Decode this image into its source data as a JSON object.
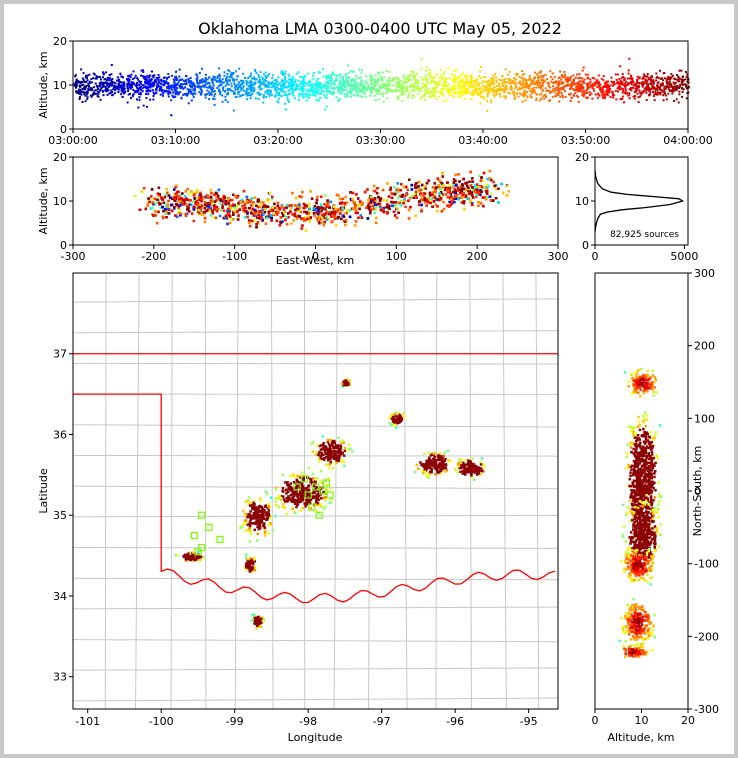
{
  "title": "Oklahoma LMA 0300-0400 UTC May 05, 2022",
  "colors": {
    "state_border": "#ff0000",
    "county": "#c8c8c8",
    "stations": "#7cfc00",
    "axis": "#000000"
  },
  "chart_data": [
    {
      "id": "time-altitude",
      "type": "scatter",
      "xlabel": "",
      "ylabel": "Altitude, km",
      "x_ticks": [
        "03:00:00",
        "03:10:00",
        "03:20:00",
        "03:30:00",
        "03:40:00",
        "03:50:00",
        "04:00:00"
      ],
      "y_ticks": [
        "0",
        "10",
        "20"
      ],
      "xlim": [
        "03:00:00",
        "04:00:00"
      ],
      "ylim": [
        0,
        20
      ],
      "color_by": "time",
      "colormap": "jet"
    },
    {
      "id": "ew-altitude",
      "type": "scatter",
      "xlabel": "East-West, km",
      "ylabel": "Altitude, km",
      "x_ticks": [
        "-300",
        "-200",
        "-100",
        "0",
        "100",
        "200",
        "300"
      ],
      "y_ticks": [
        "0",
        "10",
        "20"
      ],
      "xlim": [
        -300,
        300
      ],
      "ylim": [
        0,
        20
      ],
      "clusters": [
        {
          "x": -175,
          "y": 10
        },
        {
          "x": -120,
          "y": 9
        },
        {
          "x": -60,
          "y": 8
        },
        {
          "x": 10,
          "y": 8
        },
        {
          "x": 80,
          "y": 10
        },
        {
          "x": 140,
          "y": 12
        },
        {
          "x": 190,
          "y": 13
        }
      ]
    },
    {
      "id": "altitude-histogram",
      "type": "line",
      "x_ticks": [
        "0",
        "5000"
      ],
      "y_ticks": [
        "0",
        "10",
        "20"
      ],
      "xlim": [
        0,
        5200
      ],
      "ylim": [
        0,
        20
      ],
      "annotation": "82,925 sources",
      "x": [
        0,
        30,
        80,
        150,
        300,
        700,
        1500,
        2800,
        4200,
        4900,
        4700,
        3300,
        1800,
        900,
        400,
        150,
        40,
        0
      ],
      "y": [
        3,
        4,
        5,
        6,
        7,
        7.5,
        8,
        8.5,
        9.2,
        10,
        10.5,
        11,
        11.5,
        12,
        12.8,
        14,
        15.5,
        17
      ]
    },
    {
      "id": "plan-view",
      "type": "scatter",
      "xlabel": "Longitude",
      "ylabel": "Latitude",
      "x_ticks": [
        "-101",
        "-100",
        "-99",
        "-98",
        "-97",
        "-96",
        "-95"
      ],
      "y_ticks": [
        "33",
        "34",
        "35",
        "36",
        "37"
      ],
      "xlim": [
        -101.2,
        -94.6
      ],
      "ylim": [
        32.6,
        38
      ],
      "clusters": [
        {
          "lon": -98.1,
          "lat": 35.3,
          "sx": 0.55,
          "sy": 0.35
        },
        {
          "lon": -98.7,
          "lat": 35.0,
          "sx": 0.3,
          "sy": 0.35
        },
        {
          "lon": -97.7,
          "lat": 35.8,
          "sx": 0.35,
          "sy": 0.25
        },
        {
          "lon": -96.3,
          "lat": 35.65,
          "sx": 0.35,
          "sy": 0.22
        },
        {
          "lon": -95.8,
          "lat": 35.6,
          "sx": 0.3,
          "sy": 0.18
        },
        {
          "lon": -97.5,
          "lat": 36.65,
          "sx": 0.1,
          "sy": 0.06
        },
        {
          "lon": -96.8,
          "lat": 36.2,
          "sx": 0.15,
          "sy": 0.12
        },
        {
          "lon": -98.8,
          "lat": 34.4,
          "sx": 0.12,
          "sy": 0.15
        },
        {
          "lon": -99.6,
          "lat": 34.5,
          "sx": 0.25,
          "sy": 0.08
        },
        {
          "lon": -98.7,
          "lat": 33.7,
          "sx": 0.1,
          "sy": 0.12
        }
      ],
      "stations": [
        [
          -99.45,
          35.0
        ],
        [
          -99.35,
          34.85
        ],
        [
          -99.55,
          34.75
        ],
        [
          -99.2,
          34.7
        ],
        [
          -99.5,
          34.55
        ],
        [
          -99.45,
          34.6
        ],
        [
          -98.05,
          35.45
        ],
        [
          -97.9,
          35.35
        ],
        [
          -98.0,
          35.25
        ],
        [
          -97.8,
          35.3
        ],
        [
          -97.95,
          35.1
        ],
        [
          -97.7,
          35.25
        ],
        [
          -98.15,
          35.35
        ],
        [
          -97.75,
          35.4
        ],
        [
          -97.85,
          35.0
        ]
      ]
    },
    {
      "id": "altitude-ns",
      "type": "scatter",
      "xlabel": "Altitude, km",
      "ylabel": "North-South, km",
      "x_ticks": [
        "0",
        "10",
        "20"
      ],
      "y_ticks": [
        "-300",
        "-200",
        "-100",
        "0",
        "100",
        "200",
        "300"
      ],
      "xlim": [
        0,
        20
      ],
      "ylim": [
        -300,
        300
      ]
    }
  ]
}
